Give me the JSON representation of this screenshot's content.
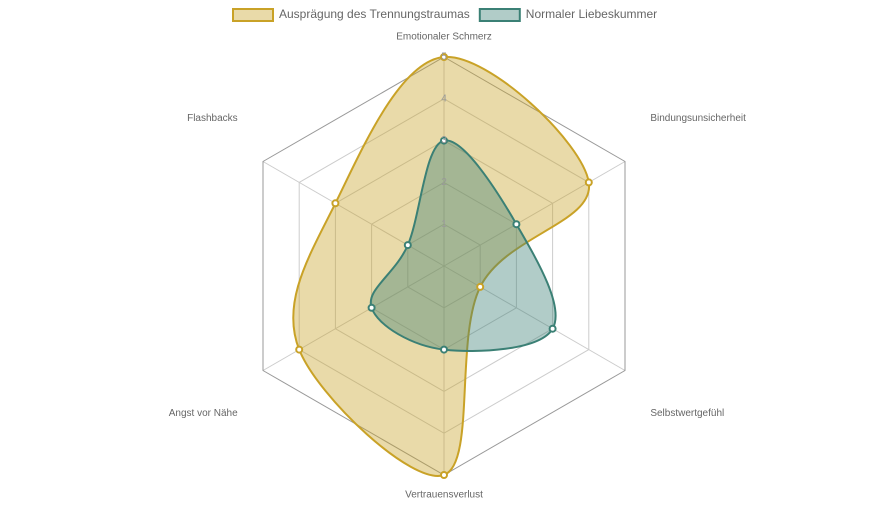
{
  "chart_data": {
    "type": "radar",
    "categories": [
      "Emotionaler Schmerz",
      "Bindungsunsicherheit",
      "Selbstwertgefühl",
      "Vertrauensverlust",
      "Angst vor Nähe",
      "Flashbacks"
    ],
    "series": [
      {
        "name": "Ausprägung des Trennungstraumas",
        "color": "#c9a227",
        "values": [
          5,
          4,
          1,
          5,
          4,
          3
        ]
      },
      {
        "name": "Normaler Liebeskummer",
        "color": "#3b8075",
        "values": [
          3,
          2,
          3,
          2,
          2,
          1
        ]
      }
    ],
    "rlim": [
      0,
      5
    ],
    "rticks": [
      1,
      2,
      3,
      4,
      5
    ],
    "legend": "top"
  }
}
